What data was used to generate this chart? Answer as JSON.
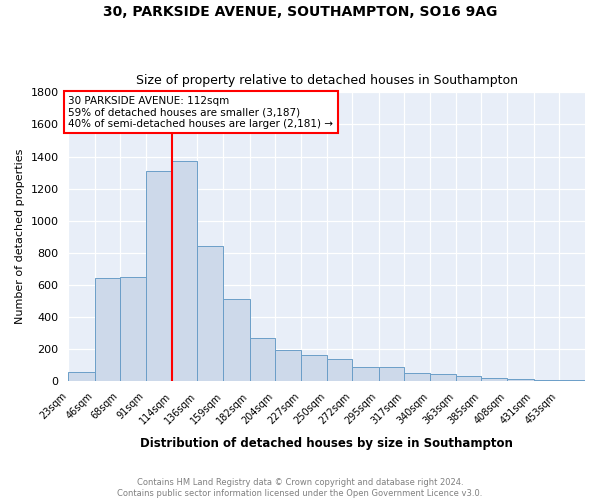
{
  "title": "30, PARKSIDE AVENUE, SOUTHAMPTON, SO16 9AG",
  "subtitle": "Size of property relative to detached houses in Southampton",
  "xlabel": "Distribution of detached houses by size in Southampton",
  "ylabel": "Number of detached properties",
  "bar_color": "#cdd9ea",
  "bar_edge_color": "#6b9ec8",
  "background_color": "#e8eef8",
  "red_line_x": 114,
  "annotation_line1": "30 PARKSIDE AVENUE: 112sqm",
  "annotation_line2": "59% of detached houses are smaller (3,187)",
  "annotation_line3": "40% of semi-detached houses are larger (2,181) →",
  "footer_line1": "Contains HM Land Registry data © Crown copyright and database right 2024.",
  "footer_line2": "Contains public sector information licensed under the Open Government Licence v3.0.",
  "ylim": [
    0,
    1800
  ],
  "yticks": [
    0,
    200,
    400,
    600,
    800,
    1000,
    1200,
    1400,
    1600,
    1800
  ],
  "bins": [
    23,
    46,
    68,
    91,
    114,
    136,
    159,
    182,
    204,
    227,
    250,
    272,
    295,
    317,
    340,
    363,
    385,
    408,
    431,
    453,
    476
  ],
  "counts": [
    60,
    645,
    650,
    1310,
    1370,
    840,
    510,
    270,
    195,
    160,
    140,
    90,
    90,
    50,
    45,
    30,
    20,
    15,
    10,
    10
  ]
}
